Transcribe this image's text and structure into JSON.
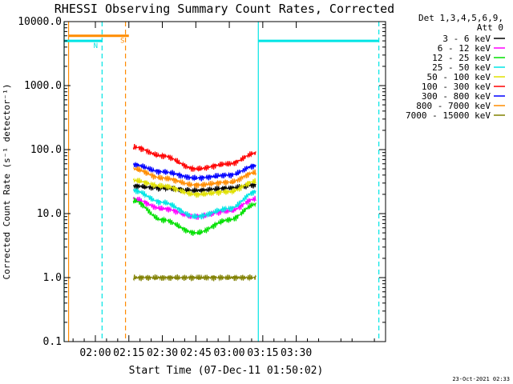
{
  "chart_data": {
    "type": "line",
    "title": "RHESSI Observing Summary Count Rates, Corrected",
    "xlabel": "Start Time (07-Dec-11 01:50:02)",
    "ylabel": "Corrected Count Rate (s⁻¹ detector⁻¹)",
    "y_scale": "log",
    "ylim": [
      0.1,
      10000
    ],
    "y_ticks": [
      "0.1",
      "1.0",
      "10.0",
      "100.0",
      "1000.0",
      "10000.0"
    ],
    "xlim_min": [
      106,
      250
    ],
    "x_ticks": [
      {
        "label": "02:00",
        "min": 120
      },
      {
        "label": "02:15",
        "min": 135
      },
      {
        "label": "02:30",
        "min": 150
      },
      {
        "label": "02:45",
        "min": 165
      },
      {
        "label": "03:00",
        "min": 180
      },
      {
        "label": "03:15",
        "min": 195
      },
      {
        "label": "03:30",
        "min": 210
      }
    ],
    "legend": {
      "header": [
        "Det 1,3,4,5,6,9,",
        "Att 0"
      ],
      "position": "right"
    },
    "series": [
      {
        "name": "3 - 6 keV",
        "color": "#000000",
        "values": [
          {
            "t": 137,
            "v": 27
          },
          {
            "t": 150,
            "v": 25
          },
          {
            "t": 165,
            "v": 23
          },
          {
            "t": 180,
            "v": 25
          },
          {
            "t": 192,
            "v": 28
          }
        ]
      },
      {
        "name": "6 - 12 keV",
        "color": "#ff00ff",
        "values": [
          {
            "t": 137,
            "v": 17
          },
          {
            "t": 150,
            "v": 12
          },
          {
            "t": 165,
            "v": 9
          },
          {
            "t": 180,
            "v": 11
          },
          {
            "t": 192,
            "v": 17
          }
        ]
      },
      {
        "name": "12 - 25 keV",
        "color": "#00e000",
        "values": [
          {
            "t": 137,
            "v": 16
          },
          {
            "t": 150,
            "v": 8
          },
          {
            "t": 165,
            "v": 5
          },
          {
            "t": 180,
            "v": 8
          },
          {
            "t": 192,
            "v": 14
          }
        ]
      },
      {
        "name": "25 - 50 keV",
        "color": "#00e5e5",
        "values": [
          {
            "t": 137,
            "v": 23
          },
          {
            "t": 150,
            "v": 15
          },
          {
            "t": 165,
            "v": 9
          },
          {
            "t": 180,
            "v": 12
          },
          {
            "t": 192,
            "v": 22
          }
        ]
      },
      {
        "name": "50 - 100 keV",
        "color": "#e0e000",
        "values": [
          {
            "t": 137,
            "v": 33
          },
          {
            "t": 150,
            "v": 27
          },
          {
            "t": 165,
            "v": 20
          },
          {
            "t": 180,
            "v": 22
          },
          {
            "t": 192,
            "v": 32
          }
        ]
      },
      {
        "name": "100 - 300 keV",
        "color": "#ff0000",
        "values": [
          {
            "t": 137,
            "v": 110
          },
          {
            "t": 150,
            "v": 80
          },
          {
            "t": 165,
            "v": 50
          },
          {
            "t": 180,
            "v": 60
          },
          {
            "t": 192,
            "v": 88
          }
        ]
      },
      {
        "name": "300 - 800 keV",
        "color": "#0000ff",
        "values": [
          {
            "t": 137,
            "v": 58
          },
          {
            "t": 150,
            "v": 45
          },
          {
            "t": 165,
            "v": 36
          },
          {
            "t": 180,
            "v": 40
          },
          {
            "t": 192,
            "v": 56
          }
        ]
      },
      {
        "name": "800 - 7000 keV",
        "color": "#ff8c00",
        "values": [
          {
            "t": 137,
            "v": 50
          },
          {
            "t": 150,
            "v": 36
          },
          {
            "t": 165,
            "v": 28
          },
          {
            "t": 180,
            "v": 31
          },
          {
            "t": 192,
            "v": 44
          }
        ]
      },
      {
        "name": "7000 - 15000 keV",
        "color": "#808000",
        "values": [
          {
            "t": 137,
            "v": 1.0
          },
          {
            "t": 165,
            "v": 1.0
          },
          {
            "t": 180,
            "v": 1.0
          },
          {
            "t": 192,
            "v": 1.0
          }
        ]
      }
    ],
    "bars": [
      {
        "label": "S",
        "color": "#ff8c00",
        "min_from": 108,
        "min_to": 135,
        "level": 6000
      },
      {
        "label": "N",
        "color": "#00e5e5",
        "min_from": 106,
        "min_to": 123,
        "level": 5000
      },
      {
        "label": "",
        "color": "#00e5e5",
        "min_from": 193,
        "min_to": 247,
        "level": 5000
      }
    ],
    "vlines": [
      {
        "min": 106,
        "color": "#00e5e5",
        "style": "solid"
      },
      {
        "min": 108,
        "color": "#ff8c00",
        "style": "solid"
      },
      {
        "min": 123,
        "color": "#00e5e5",
        "style": "dashed"
      },
      {
        "min": 133.5,
        "color": "#ff8c00",
        "style": "dashed"
      },
      {
        "min": 193,
        "color": "#00e5e5",
        "style": "solid"
      },
      {
        "min": 247,
        "color": "#00e5e5",
        "style": "dashed"
      }
    ]
  },
  "footer": {
    "date": "23-Oct-2021 02:33"
  }
}
